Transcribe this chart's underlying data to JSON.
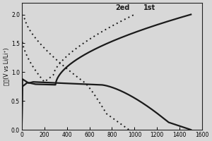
{
  "ylabel": "电压(V vs Li/Li⁺)",
  "xlim": [
    0,
    1600
  ],
  "ylim": [
    0.0,
    2.2
  ],
  "xticks": [
    0,
    200,
    400,
    600,
    800,
    1000,
    1200,
    1400,
    1600
  ],
  "yticks": [
    0.0,
    0.5,
    1.0,
    1.5,
    2.0
  ],
  "legend_labels": [
    "2ed",
    "1st"
  ],
  "line_color": "#1a1a1a",
  "background_color": "#d8d8d8"
}
